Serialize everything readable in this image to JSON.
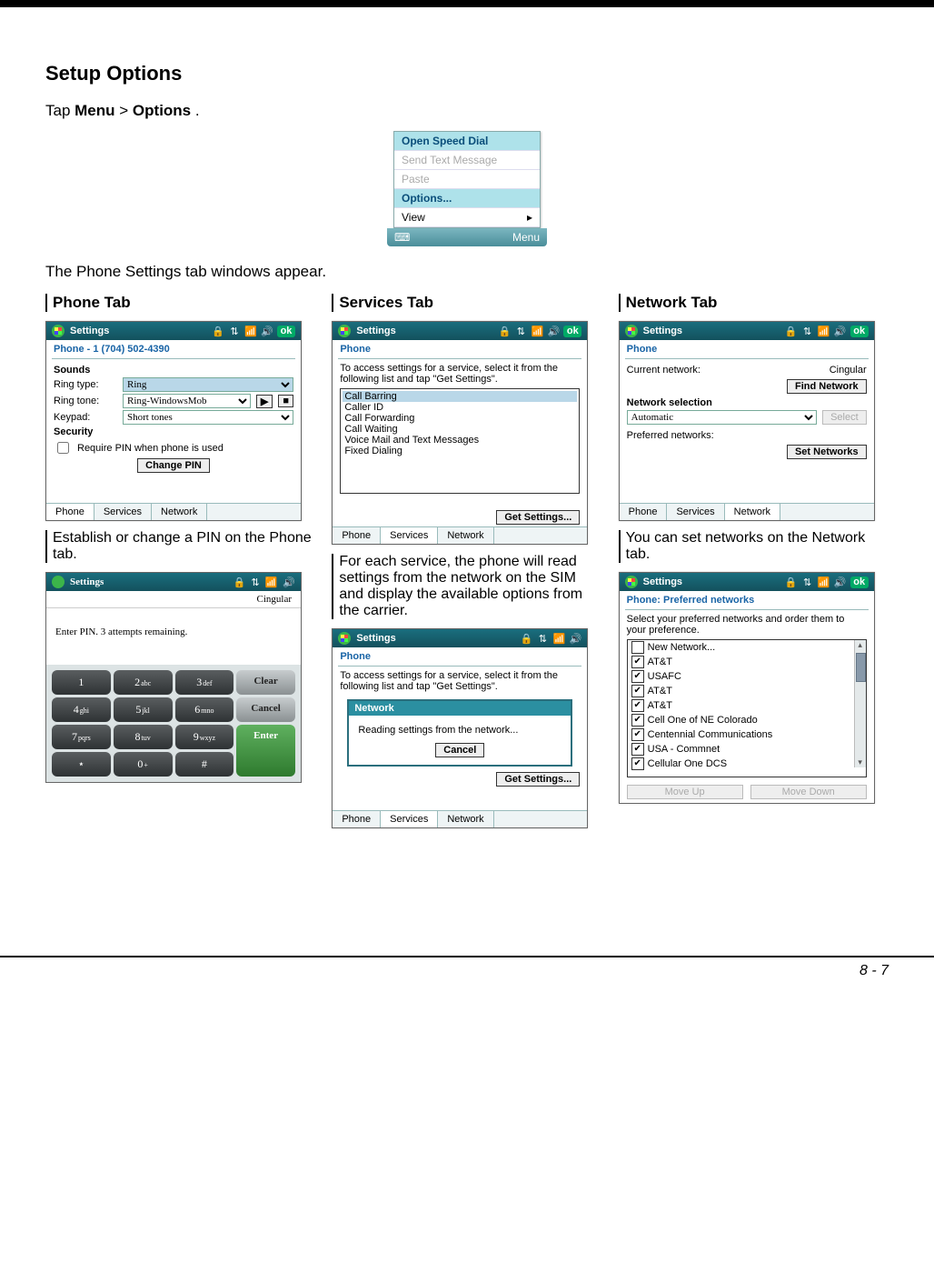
{
  "page": {
    "title": "Setup Options",
    "intro_pre": "Tap ",
    "intro_b1": "Menu",
    "intro_sep": " > ",
    "intro_b2": "Options",
    "intro_post": ".",
    "caption": "The Phone Settings tab windows appear.",
    "footer": "8 - 7"
  },
  "menu": {
    "items": [
      "Open Speed Dial",
      "Send Text Message",
      "Paste",
      "Options...",
      "View"
    ],
    "soft": "Menu"
  },
  "headers": {
    "phone": "Phone Tab",
    "services": "Services Tab",
    "network": "Network Tab"
  },
  "descs": {
    "phone": "Establish or change a PIN on the Phone tab.",
    "services": "For each service, the phone will read settings from the network on the SIM and display the available options from the carrier.",
    "network": "You can set networks on the Network tab."
  },
  "wmTitle": {
    "settings": "Settings",
    "icons": "🔒 ⇅ 📶 🔊",
    "ok": "ok"
  },
  "phone": {
    "sub": "Phone - 1 (704) 502-4390",
    "sounds": "Sounds",
    "ringtype_lbl": "Ring type:",
    "ringtype_val": "Ring",
    "ringtone_lbl": "Ring tone:",
    "ringtone_val": "Ring-WindowsMob",
    "keypad_lbl": "Keypad:",
    "keypad_val": "Short tones",
    "security": "Security",
    "pin_chk": "Require PIN when phone is used",
    "change_pin": "Change PIN",
    "tabs": [
      "Phone",
      "Services",
      "Network"
    ]
  },
  "services": {
    "sub": "Phone",
    "text": "To access settings for a service, select it from the following list and tap \"Get Settings\".",
    "items": [
      "Call Barring",
      "Caller ID",
      "Call Forwarding",
      "Call Waiting",
      "Voice Mail and Text Messages",
      "Fixed Dialing"
    ],
    "get": "Get Settings...",
    "tabs": [
      "Phone",
      "Services",
      "Network"
    ]
  },
  "network": {
    "sub": "Phone",
    "cur_lbl": "Current network:",
    "cur_val": "Cingular",
    "find": "Find Network",
    "sel_head": "Network selection",
    "sel_val": "Automatic",
    "sel_btn": "Select",
    "pref_lbl": "Preferred networks:",
    "set_btn": "Set Networks",
    "tabs": [
      "Phone",
      "Services",
      "Network"
    ]
  },
  "pin": {
    "carrier": "Cingular",
    "msg": "Enter PIN. 3 attempts remaining.",
    "keys": [
      [
        "1",
        "2abc",
        "3def",
        "Clear"
      ],
      [
        "4ghi",
        "5jkl",
        "6mno",
        "Cancel"
      ],
      [
        "7pqrs",
        "8tuv",
        "9wxyz",
        ""
      ],
      [
        "  *",
        "0+",
        "",
        ""
      ]
    ],
    "clear": "Clear",
    "cancel": "Cancel",
    "enter": "Enter"
  },
  "svcpopup": {
    "title": "Network",
    "msg": "Reading settings from the network...",
    "cancel": "Cancel"
  },
  "prefnet": {
    "sub": "Phone: Preferred networks",
    "text": "Select your preferred networks and order them to your preference.",
    "items": [
      {
        "chk": false,
        "label": "New Network..."
      },
      {
        "chk": true,
        "label": "AT&T"
      },
      {
        "chk": true,
        "label": "USAFC"
      },
      {
        "chk": true,
        "label": "AT&T"
      },
      {
        "chk": true,
        "label": "AT&T"
      },
      {
        "chk": true,
        "label": "Cell One of NE Colorado"
      },
      {
        "chk": true,
        "label": "Centennial Communications"
      },
      {
        "chk": true,
        "label": "USA - Commnet"
      },
      {
        "chk": true,
        "label": "Cellular One DCS"
      }
    ],
    "moveup": "Move Up",
    "movedown": "Move Down"
  }
}
